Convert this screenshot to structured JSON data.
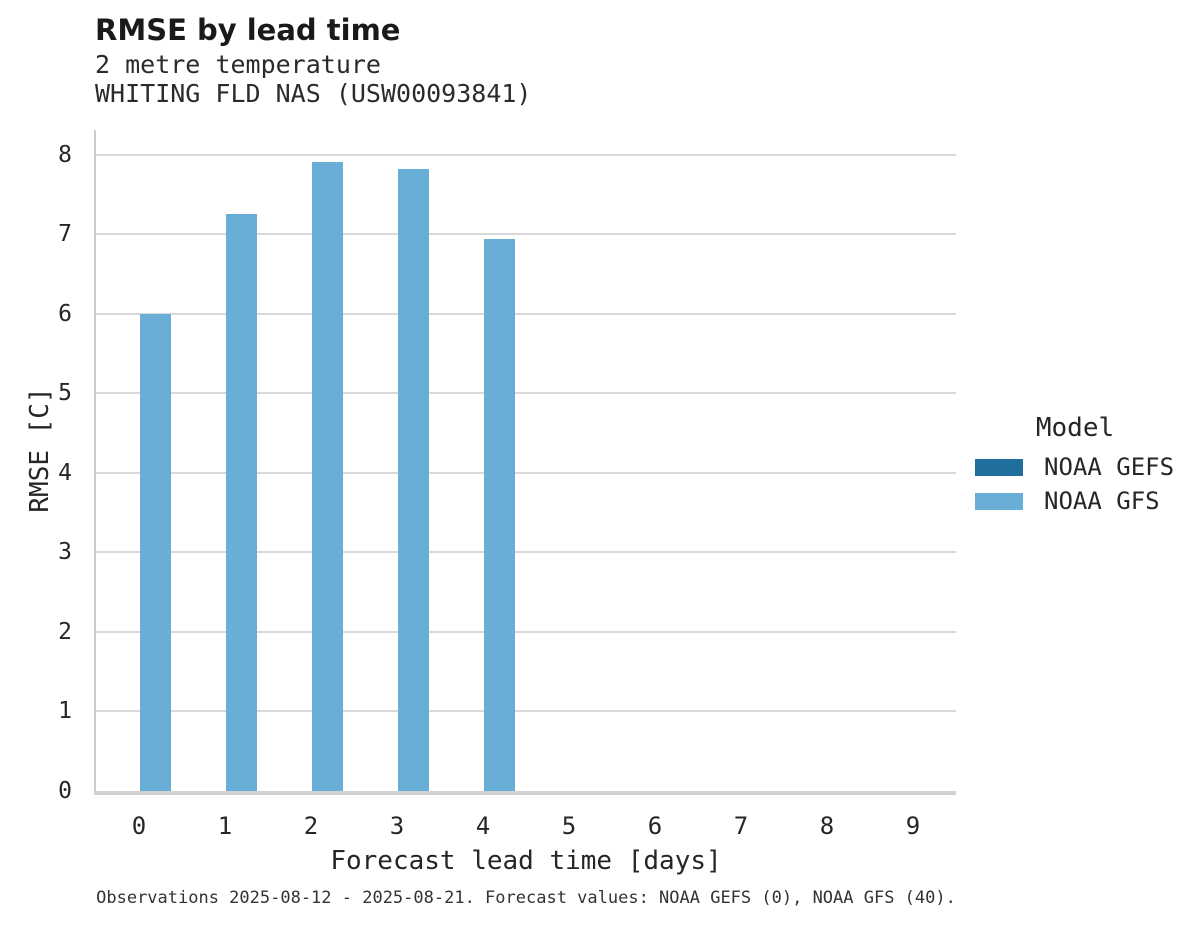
{
  "header": {
    "title": "RMSE by lead time",
    "subtitle1": "2 metre temperature",
    "subtitle2": "WHITING FLD NAS (USW00093841)"
  },
  "chart_data": {
    "type": "bar",
    "title": "RMSE by lead time",
    "subtitle": "2 metre temperature — WHITING FLD NAS (USW00093841)",
    "xlabel": "Forecast lead time [days]",
    "ylabel": "RMSE [C]",
    "categories": [
      "0",
      "1",
      "2",
      "3",
      "4",
      "5",
      "6",
      "7",
      "8",
      "9"
    ],
    "series": [
      {
        "name": "NOAA GEFS",
        "color": "#1f6e9e",
        "values": [
          null,
          null,
          null,
          null,
          null,
          null,
          null,
          null,
          null,
          null
        ]
      },
      {
        "name": "NOAA GFS",
        "color": "#68aed6",
        "values": [
          6.0,
          7.26,
          7.91,
          7.82,
          6.94,
          null,
          null,
          null,
          null,
          null
        ]
      }
    ],
    "ylim": [
      0,
      8.31
    ],
    "yticks": [
      0,
      1,
      2,
      3,
      4,
      5,
      6,
      7,
      8
    ],
    "grid": "horizontal",
    "legend": {
      "title": "Model",
      "position": "right"
    }
  },
  "footer": {
    "note": "Observations 2025-08-12 - 2025-08-21. Forecast values: NOAA GEFS (0), NOAA GFS (40)."
  },
  "colors": {
    "bar_noaa_gefs": "#1f6e9e",
    "bar_noaa_gfs": "#68aed6",
    "gridline": "#d9d9d9",
    "spine": "#cbcbcb",
    "text": "#262626"
  }
}
